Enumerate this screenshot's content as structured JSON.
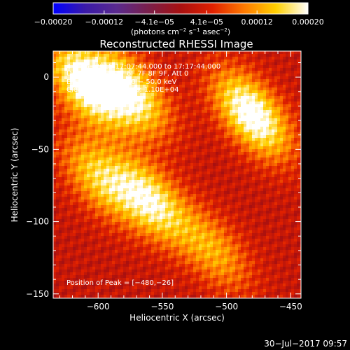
{
  "chart_data": {
    "type": "heatmap",
    "title": "Reconstructed RHESSI Image",
    "xlabel": "Heliocentric X (arcsec)",
    "ylabel": "Heliocentric Y (arcsec)",
    "xlim": [
      -635,
      -442
    ],
    "ylim": [
      -153,
      18
    ],
    "x_ticks": [
      -600,
      -550,
      -500,
      -450
    ],
    "x_tick_labels": [
      "−600",
      "−550",
      "−500",
      "−450"
    ],
    "y_ticks": [
      0,
      -50,
      -100,
      -150
    ],
    "y_tick_labels": [
      "0",
      "−50",
      "−100",
      "−150"
    ],
    "colorbar": {
      "range": [
        -0.0002,
        0.0002
      ],
      "tick_values": [
        -0.0002,
        -0.00012,
        -4.1e-05,
        4.1e-05,
        0.00012,
        0.0002
      ],
      "tick_labels": [
        "−0.00020",
        "−0.00012",
        "−4.1e−05",
        "4.1e−05",
        "0.00012",
        "0.00020"
      ],
      "units_main": "(photons cm",
      "units_exp1": "−2",
      "units_mid": " s",
      "units_exp2": "−1",
      "units_tail": " asec",
      "units_exp3": "−2",
      "units_close": ")",
      "colors": [
        "#0000ff",
        "#3a1aa8",
        "#5a2a8e",
        "#7a1f4a",
        "#a81010",
        "#e02000",
        "#ff7a00",
        "#ffd000",
        "#ffffff"
      ]
    },
    "info_lines": [
      "4−Feb−2015 17:07:44.000 to 17:17:44.000",
      "Detectors: 3F 5F 6F 7F 8F 9F, Att 0",
      "Energy Range: 25.0 − 50.0 keV",
      "Clean     Total counts: 1.10E+04"
    ],
    "peak_label": "Position of Peak = [−480,−26]",
    "peak_position": [
      -480,
      -26
    ],
    "image_description_sources": [
      {
        "x": -610,
        "y": -5,
        "strength": 0.00019
      },
      {
        "x": -575,
        "y": -10,
        "strength": 0.00017
      },
      {
        "x": -480,
        "y": -26,
        "strength": 0.0002
      },
      {
        "x": -560,
        "y": -85,
        "strength": 0.00016
      },
      {
        "x": -600,
        "y": -70,
        "strength": 0.00012
      },
      {
        "x": -510,
        "y": -120,
        "strength": 0.0001
      }
    ]
  },
  "footer": {
    "timestamp": "30−Jul−2017 09:57"
  }
}
